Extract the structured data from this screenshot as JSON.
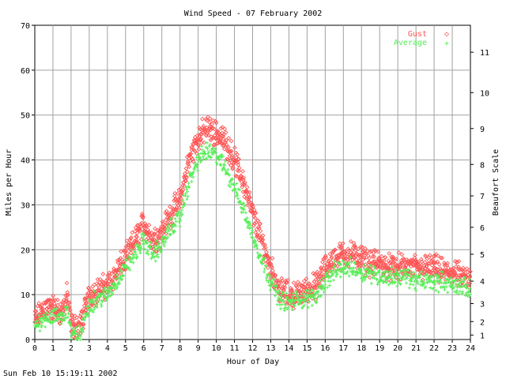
{
  "timestamp": "Sun Feb 10 15:19:11 2002",
  "chart_data": {
    "type": "scatter",
    "title": "Wind Speed - 07 February 2002",
    "xlabel": "Hour of Day",
    "ylabel": "Miles per Hour",
    "y2label": "Beaufort Scale",
    "xlim": [
      0,
      24
    ],
    "ylim": [
      0,
      70
    ],
    "xticks": [
      "0",
      "1",
      "2",
      "3",
      "4",
      "5",
      "6",
      "7",
      "8",
      "9",
      "10",
      "11",
      "12",
      "13",
      "14",
      "15",
      "16",
      "17",
      "18",
      "19",
      "20",
      "21",
      "22",
      "23",
      "24"
    ],
    "yticks": [
      "0",
      "10",
      "20",
      "30",
      "40",
      "50",
      "60",
      "70"
    ],
    "beaufort": [
      {
        "label": "1",
        "mph": 1
      },
      {
        "label": "2",
        "mph": 4
      },
      {
        "label": "3",
        "mph": 8
      },
      {
        "label": "4",
        "mph": 13
      },
      {
        "label": "5",
        "mph": 19
      },
      {
        "label": "6",
        "mph": 25
      },
      {
        "label": "7",
        "mph": 32
      },
      {
        "label": "8",
        "mph": 39
      },
      {
        "label": "9",
        "mph": 47
      },
      {
        "label": "10",
        "mph": 55
      },
      {
        "label": "11",
        "mph": 64
      }
    ],
    "grid": true,
    "legend_position": "top-right",
    "series": [
      {
        "name": "Gust",
        "marker": "◇",
        "color": "#ff5555",
        "x": [
          0.0,
          0.5,
          1.0,
          1.5,
          1.8,
          2.0,
          2.5,
          3.0,
          3.5,
          4.0,
          4.5,
          5.0,
          5.5,
          6.0,
          6.5,
          7.0,
          7.5,
          8.0,
          8.5,
          9.0,
          9.5,
          10.0,
          10.5,
          11.0,
          11.5,
          12.0,
          12.5,
          13.0,
          13.5,
          14.0,
          14.5,
          15.0,
          15.5,
          16.0,
          16.5,
          17.0,
          17.5,
          18.0,
          18.5,
          19.0,
          19.5,
          20.0,
          20.5,
          21.0,
          21.5,
          22.0,
          22.5,
          23.0,
          23.5,
          24.0
        ],
        "values": [
          4,
          7,
          7,
          6,
          10,
          3,
          3,
          10,
          11,
          12,
          15,
          18,
          22,
          26,
          22,
          24,
          28,
          31,
          40,
          45,
          47,
          46,
          44,
          40,
          35,
          28,
          22,
          16,
          11,
          10,
          10,
          11,
          12,
          16,
          18,
          19,
          19,
          18,
          17,
          17,
          16,
          16,
          16,
          16,
          16,
          16,
          15,
          15,
          14,
          13
        ],
        "spread": 3.5
      },
      {
        "name": "Average",
        "marker": "+",
        "color": "#55ee55",
        "x": [
          0.0,
          0.5,
          1.0,
          1.5,
          1.8,
          2.0,
          2.5,
          3.0,
          3.5,
          4.0,
          4.5,
          5.0,
          5.5,
          6.0,
          6.5,
          7.0,
          7.5,
          8.0,
          8.5,
          9.0,
          9.5,
          10.0,
          10.5,
          11.0,
          11.5,
          12.0,
          12.5,
          13.0,
          13.5,
          14.0,
          14.5,
          15.0,
          15.5,
          16.0,
          16.5,
          17.0,
          17.5,
          18.0,
          18.5,
          19.0,
          19.5,
          20.0,
          20.5,
          21.0,
          21.5,
          22.0,
          22.5,
          23.0,
          23.5,
          24.0
        ],
        "values": [
          3,
          5,
          5,
          5,
          7,
          1,
          1,
          8,
          9,
          10,
          13,
          16,
          19,
          22,
          19,
          21,
          25,
          27,
          35,
          40,
          42,
          41,
          38,
          34,
          29,
          23,
          18,
          13,
          9,
          8,
          9,
          9,
          10,
          13,
          15,
          16,
          16,
          15,
          15,
          14,
          14,
          14,
          14,
          13,
          13,
          13,
          13,
          12,
          12,
          11
        ],
        "spread": 2.5
      }
    ]
  }
}
